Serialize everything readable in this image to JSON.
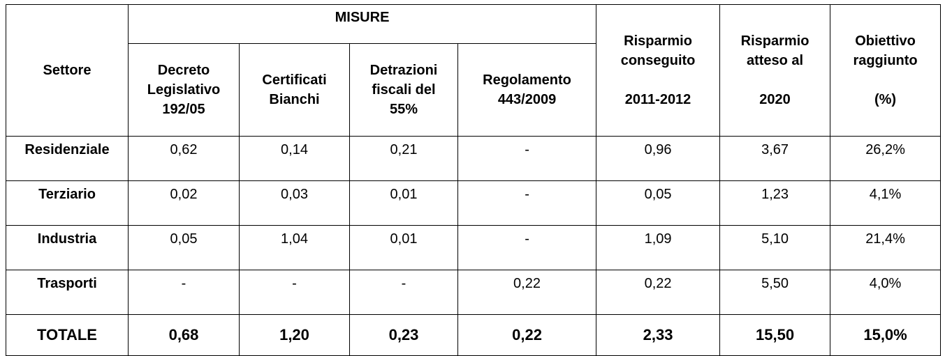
{
  "table": {
    "group_header": "MISURE",
    "header": [
      [
        "Settore"
      ],
      [
        "Decreto",
        "Legislativo",
        "192/05"
      ],
      [
        "Certificati",
        "Bianchi"
      ],
      [
        "Detrazioni",
        "fiscali del",
        "55%"
      ],
      [
        "Regolamento",
        "443/2009"
      ],
      [
        "Risparmio",
        "conseguito",
        "2011-2012"
      ],
      [
        "Risparmio",
        "atteso al",
        "2020"
      ],
      [
        "Obiettivo",
        "raggiunto",
        "(%)"
      ]
    ],
    "rows": [
      [
        "Residenziale",
        "0,62",
        "0,14",
        "0,21",
        "-",
        "0,96",
        "3,67",
        "26,2%"
      ],
      [
        "Terziario",
        "0,02",
        "0,03",
        "0,01",
        "-",
        "0,05",
        "1,23",
        "4,1%"
      ],
      [
        "Industria",
        "0,05",
        "1,04",
        "0,01",
        "-",
        "1,09",
        "5,10",
        "21,4%"
      ],
      [
        "Trasporti",
        "-",
        "-",
        "-",
        "0,22",
        "0,22",
        "5,50",
        "4,0%"
      ],
      [
        "TOTALE",
        "0,68",
        "1,20",
        "0,23",
        "0,22",
        "2,33",
        "15,50",
        "15,0%"
      ]
    ]
  }
}
